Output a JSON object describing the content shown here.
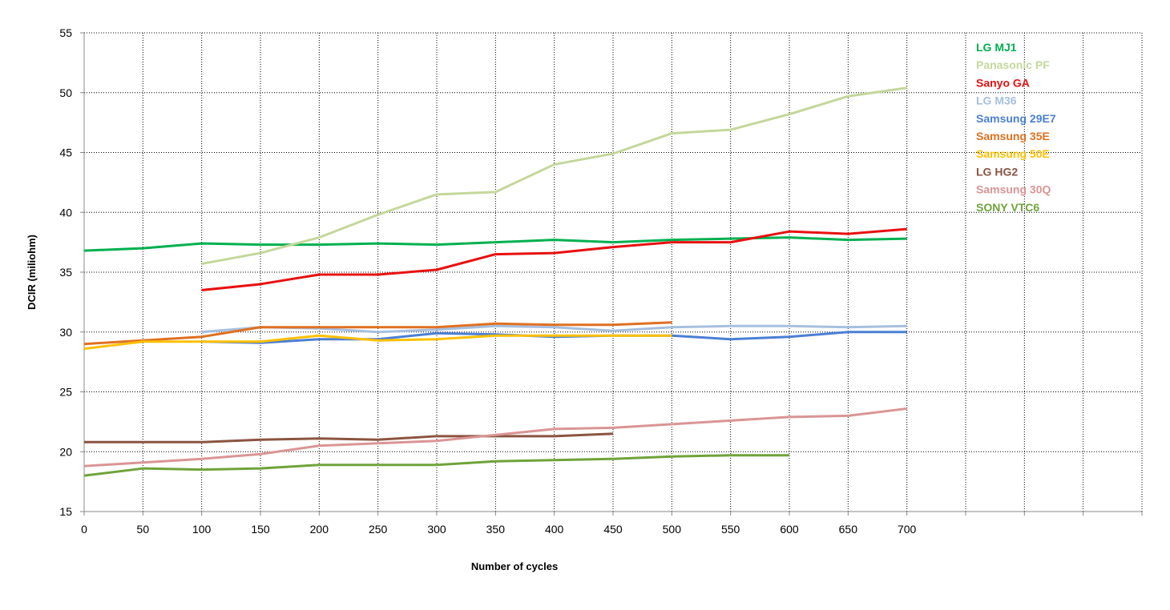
{
  "chart_data": {
    "type": "line",
    "title": "",
    "xlabel": "Number of cycles",
    "ylabel": "DCIR (miliohm)",
    "xlim": [
      0,
      900
    ],
    "ylim": [
      15,
      55
    ],
    "x_ticks": [
      0,
      50,
      100,
      150,
      200,
      250,
      300,
      350,
      400,
      450,
      500,
      550,
      600,
      650,
      700
    ],
    "y_ticks": [
      15,
      20,
      25,
      30,
      35,
      40,
      45,
      50,
      55
    ],
    "grid": true,
    "legend_position": "top-right",
    "series": [
      {
        "name": "LG MJ1",
        "color": "#00b050",
        "x": [
          0,
          50,
          100,
          150,
          200,
          250,
          300,
          350,
          400,
          450,
          500,
          550,
          600,
          650,
          700
        ],
        "values": [
          36.8,
          37.0,
          37.4,
          37.3,
          37.3,
          37.4,
          37.3,
          37.5,
          37.7,
          37.5,
          37.7,
          37.8,
          37.9,
          37.7,
          37.8
        ]
      },
      {
        "name": "Panasonic PF",
        "color": "#c4d79b",
        "x": [
          100,
          150,
          200,
          250,
          300,
          350,
          400,
          450,
          500,
          550,
          600,
          650,
          700
        ],
        "values": [
          35.7,
          36.6,
          37.9,
          39.8,
          41.5,
          41.7,
          44.0,
          44.9,
          46.6,
          46.9,
          48.2,
          49.7,
          50.4
        ]
      },
      {
        "name": "Sanyo GA",
        "color": "#e81010",
        "x": [
          100,
          150,
          200,
          250,
          300,
          350,
          400,
          450,
          500,
          550,
          600,
          650,
          700
        ],
        "values": [
          33.5,
          34.0,
          34.8,
          34.8,
          35.2,
          36.5,
          36.6,
          37.1,
          37.5,
          37.5,
          38.4,
          38.2,
          38.6
        ]
      },
      {
        "name": "LG M36",
        "color": "#a6bfdf",
        "x": [
          100,
          150,
          200,
          250,
          300,
          350,
          400,
          450,
          500,
          550,
          600,
          650,
          700
        ],
        "values": [
          30.0,
          30.4,
          30.3,
          30.0,
          30.2,
          30.5,
          30.4,
          30.1,
          30.4,
          30.5,
          30.5,
          30.4,
          30.5
        ]
      },
      {
        "name": "Samsung 29E7",
        "color": "#4a7fd4",
        "x": [
          100,
          150,
          200,
          250,
          300,
          350,
          400,
          450,
          500,
          550,
          600,
          650,
          700
        ],
        "values": [
          29.2,
          29.1,
          29.4,
          29.4,
          29.9,
          29.8,
          29.6,
          29.7,
          29.7,
          29.4,
          29.6,
          30.0,
          30.0
        ]
      },
      {
        "name": "Samsung 35E",
        "color": "#e07020",
        "x": [
          0,
          50,
          100,
          150,
          200,
          250,
          300,
          350,
          400,
          450,
          500
        ],
        "values": [
          29.0,
          29.3,
          29.6,
          30.4,
          30.4,
          30.4,
          30.4,
          30.7,
          30.6,
          30.6,
          30.8
        ]
      },
      {
        "name": "Samsung 50E",
        "color": "#ffc000",
        "x": [
          0,
          50,
          100,
          150,
          200,
          250,
          300,
          350,
          400,
          450,
          500
        ],
        "values": [
          28.6,
          29.2,
          29.2,
          29.2,
          29.7,
          29.3,
          29.4,
          29.7,
          29.7,
          29.7,
          29.7
        ]
      },
      {
        "name": "LG HG2",
        "color": "#8b5440",
        "x": [
          0,
          50,
          100,
          150,
          200,
          250,
          300,
          350,
          400,
          450
        ],
        "values": [
          20.8,
          20.8,
          20.8,
          21.0,
          21.1,
          21.0,
          21.3,
          21.3,
          21.3,
          21.5
        ]
      },
      {
        "name": "Samsung 30Q",
        "color": "#d99594",
        "x": [
          0,
          50,
          100,
          150,
          200,
          250,
          300,
          350,
          400,
          450,
          500,
          550,
          600,
          650,
          700
        ],
        "values": [
          18.8,
          19.1,
          19.4,
          19.8,
          20.5,
          20.7,
          20.9,
          21.4,
          21.9,
          22.0,
          22.3,
          22.6,
          22.9,
          23.0,
          23.6
        ]
      },
      {
        "name": "SONY VTC6",
        "color": "#6fa33a",
        "x": [
          0,
          50,
          100,
          150,
          200,
          250,
          300,
          350,
          400,
          450,
          500,
          550,
          600
        ],
        "values": [
          18.0,
          18.6,
          18.5,
          18.6,
          18.9,
          18.9,
          18.9,
          19.2,
          19.3,
          19.4,
          19.6,
          19.7,
          19.7
        ]
      }
    ]
  }
}
